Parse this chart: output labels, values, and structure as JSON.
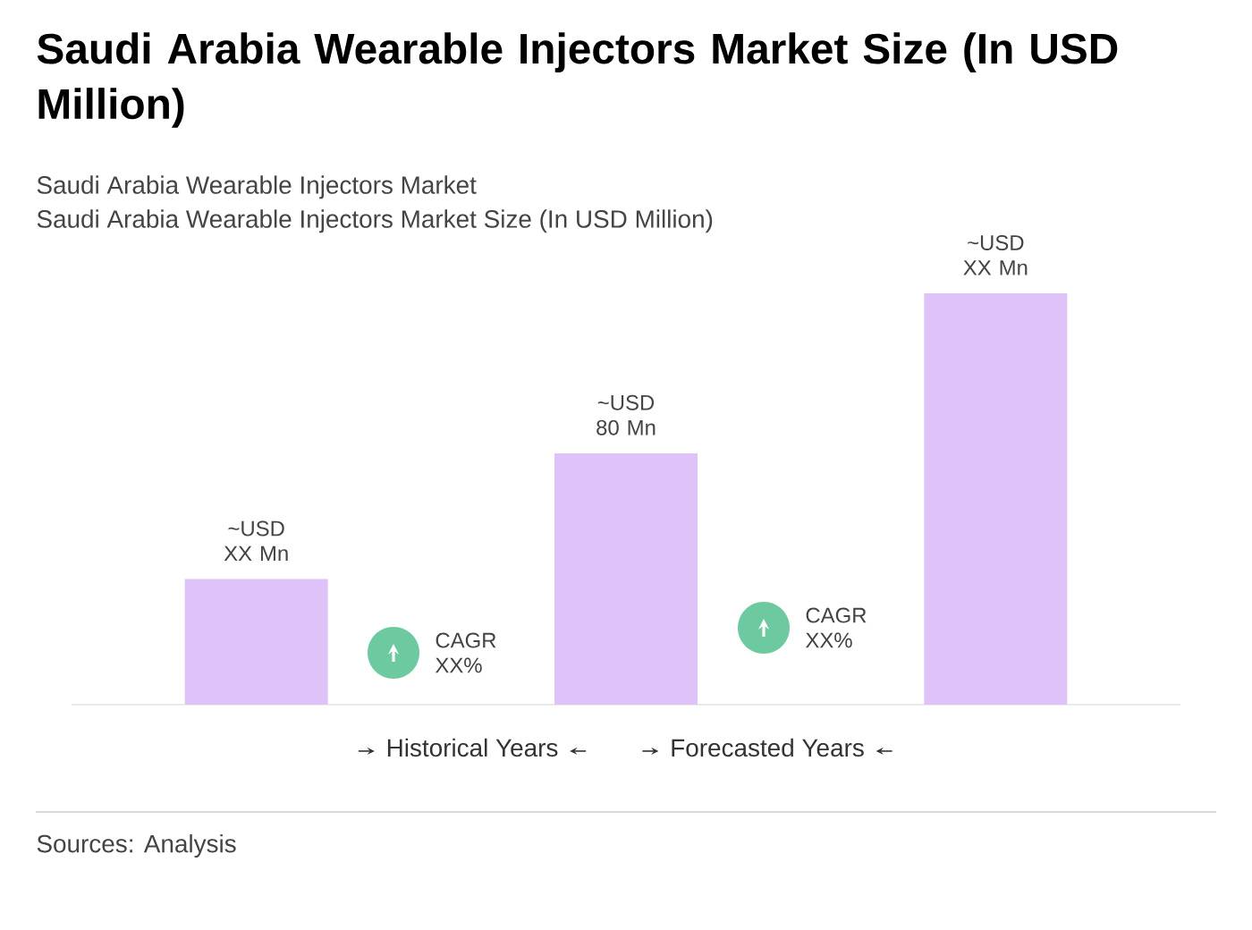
{
  "chart_data": {
    "type": "bar",
    "title": "Saudi Arabia Wearable Injectors Market Size (In USD Million)",
    "subtitle": "Saudi Arabia Wearable Injectors Market",
    "categories": [
      null,
      null,
      null
    ],
    "values": [
      40,
      80,
      131
    ],
    "ylim": [
      0,
      131
    ],
    "color": "#dfc2f7",
    "value_labels": [
      "~USD XX Mn",
      "~USD 80 Mn",
      "~USD XX Mn"
    ],
    "annotations": [
      "Saudi Arabia Wearable Injectors Market Size (In USD Million)",
      "CAGR XX%",
      "CAGR XX%",
      "Historical Years",
      "Forecasted Years",
      "Sources: Analysis"
    ]
  }
}
